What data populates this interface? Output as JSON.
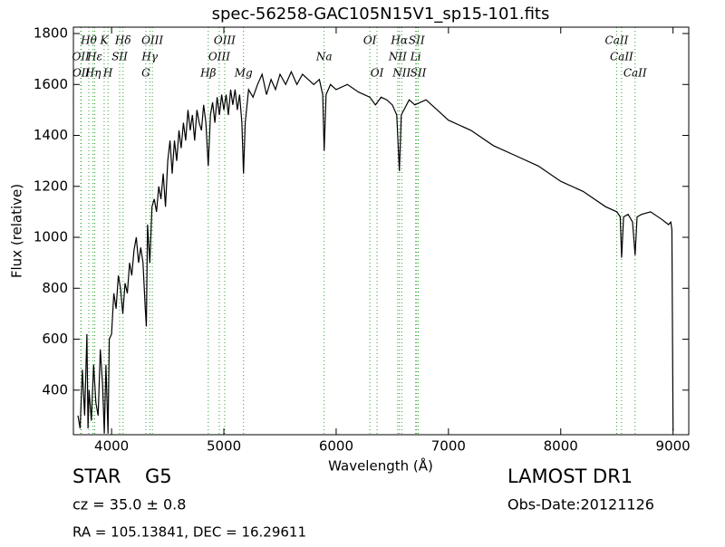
{
  "chart_data": {
    "type": "line",
    "title": "spec-56258-GAC105N15V1_sp15-101.fits",
    "x_label": "Wavelength (Å)",
    "y_label": "Flux (relative)",
    "xlim": [
      3660,
      9140
    ],
    "ylim": [
      225,
      1825
    ],
    "xticks": [
      4000,
      5000,
      6000,
      7000,
      8000,
      9000
    ],
    "yticks": [
      400,
      600,
      800,
      1000,
      1200,
      1400,
      1600,
      1800
    ],
    "series": [
      {
        "color": "#000000",
        "x": [
          3700,
          3720,
          3740,
          3760,
          3780,
          3790,
          3800,
          3820,
          3840,
          3860,
          3880,
          3900,
          3920,
          3935,
          3950,
          3968,
          3980,
          4000,
          4020,
          4040,
          4060,
          4080,
          4100,
          4120,
          4140,
          4160,
          4180,
          4200,
          4220,
          4240,
          4260,
          4280,
          4300,
          4310,
          4320,
          4340,
          4360,
          4380,
          4400,
          4420,
          4440,
          4460,
          4480,
          4500,
          4520,
          4540,
          4560,
          4580,
          4600,
          4620,
          4640,
          4660,
          4680,
          4700,
          4720,
          4740,
          4760,
          4780,
          4800,
          4820,
          4840,
          4861,
          4880,
          4900,
          4920,
          4940,
          4960,
          4980,
          5000,
          5020,
          5040,
          5060,
          5080,
          5100,
          5120,
          5140,
          5160,
          5175,
          5190,
          5220,
          5260,
          5300,
          5340,
          5380,
          5420,
          5460,
          5500,
          5550,
          5600,
          5650,
          5700,
          5750,
          5800,
          5850,
          5880,
          5893,
          5910,
          5950,
          6000,
          6100,
          6200,
          6300,
          6350,
          6400,
          6450,
          6500,
          6540,
          6563,
          6580,
          6650,
          6700,
          6800,
          6900,
          7000,
          7200,
          7400,
          7600,
          7800,
          8000,
          8200,
          8400,
          8500,
          8530,
          8542,
          8560,
          8600,
          8640,
          8662,
          8680,
          8720,
          8800,
          8900,
          8960,
          8980,
          8990,
          9000
        ],
        "values": [
          300,
          250,
          480,
          300,
          620,
          250,
          400,
          280,
          500,
          350,
          300,
          560,
          420,
          230,
          500,
          230,
          600,
          620,
          780,
          720,
          850,
          800,
          700,
          820,
          780,
          900,
          850,
          950,
          1000,
          900,
          960,
          900,
          720,
          650,
          1050,
          900,
          1120,
          1150,
          1100,
          1200,
          1150,
          1250,
          1120,
          1300,
          1380,
          1250,
          1380,
          1300,
          1420,
          1350,
          1450,
          1380,
          1500,
          1420,
          1480,
          1380,
          1500,
          1450,
          1420,
          1520,
          1450,
          1280,
          1480,
          1530,
          1450,
          1550,
          1480,
          1560,
          1500,
          1560,
          1480,
          1580,
          1520,
          1580,
          1500,
          1560,
          1450,
          1250,
          1450,
          1580,
          1550,
          1600,
          1640,
          1560,
          1620,
          1580,
          1640,
          1600,
          1650,
          1600,
          1640,
          1620,
          1600,
          1620,
          1560,
          1340,
          1560,
          1600,
          1580,
          1600,
          1570,
          1550,
          1520,
          1550,
          1540,
          1520,
          1480,
          1260,
          1480,
          1540,
          1520,
          1540,
          1500,
          1460,
          1420,
          1360,
          1320,
          1280,
          1220,
          1180,
          1120,
          1100,
          1080,
          920,
          1080,
          1090,
          1060,
          930,
          1080,
          1090,
          1100,
          1070,
          1050,
          1060,
          1030,
          240
        ]
      }
    ],
    "line_color": "#2ca02c",
    "line_markers": [
      [
        {
          "label": "Hθ",
          "x": 3797
        },
        {
          "label": "K",
          "x": 3934
        },
        {
          "label": "Hδ",
          "x": 4102
        },
        {
          "label": "OIII",
          "x": 4363
        },
        {
          "label": "OIII",
          "x": 5007
        },
        {
          "label": "OI",
          "x": 6300
        },
        {
          "label": "Hα",
          "x": 6563
        },
        {
          "label": "SII",
          "x": 6717
        },
        {
          "label": "CaII",
          "x": 8498
        }
      ],
      [
        {
          "label": "OII",
          "x": 3726
        },
        {
          "label": "Hε",
          "x": 3850
        },
        {
          "label": "SII",
          "x": 4072
        },
        {
          "label": "Hγ",
          "x": 4340
        },
        {
          "label": "OIII",
          "x": 4959
        },
        {
          "label": "Na",
          "x": 5893
        },
        {
          "label": "NII",
          "x": 6548
        },
        {
          "label": "Li",
          "x": 6708
        },
        {
          "label": "CaII",
          "x": 8542
        }
      ],
      [
        {
          "label": "OII",
          "x": 3729
        },
        {
          "label": "Hη",
          "x": 3835
        },
        {
          "label": "H",
          "x": 3968
        },
        {
          "label": "G",
          "x": 4305
        },
        {
          "label": "Hβ",
          "x": 4861
        },
        {
          "label": "Mg",
          "x": 5175
        },
        {
          "label": "OI",
          "x": 6364
        },
        {
          "label": "NII",
          "x": 6584
        },
        {
          "label": "SII",
          "x": 6731
        },
        {
          "label": "CaII",
          "x": 8662
        }
      ]
    ]
  },
  "footer": {
    "class": "STAR",
    "subclass": "G5",
    "cz": "cz = 35.0 ± 0.8",
    "survey": "LAMOST DR1",
    "obs_date": "Obs-Date:20121126",
    "coords": "RA = 105.13841, DEC = 16.29611"
  }
}
